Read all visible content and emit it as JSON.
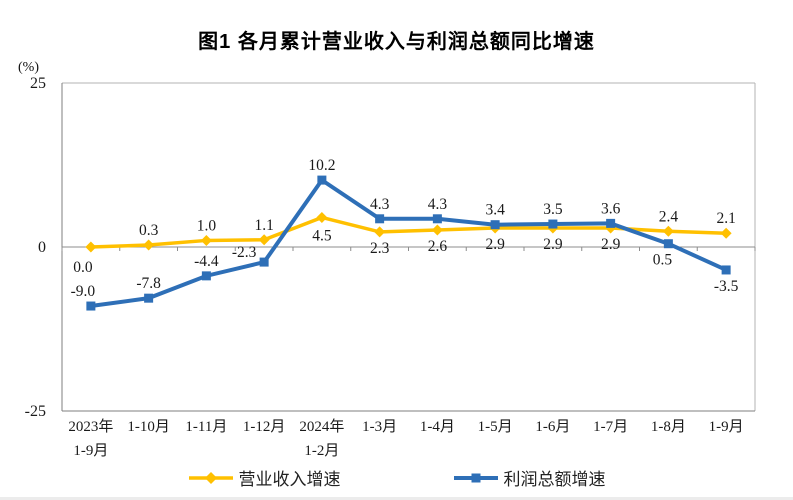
{
  "title": "图1 各月累计营业收入与利润总额同比增速",
  "y_axis_unit": "(%)",
  "chart_data": {
    "type": "line",
    "title": "图1 各月累计营业收入与利润总额同比增速",
    "ylabel_unit": "(%)",
    "ylim": [
      -25,
      25
    ],
    "yticks": [
      25,
      0,
      -25
    ],
    "grid": false,
    "legend_position": "bottom",
    "categories": [
      [
        "2023年",
        "1-9月"
      ],
      [
        "1-10月"
      ],
      [
        "1-11月"
      ],
      [
        "1-12月"
      ],
      [
        "2024年",
        "1-2月"
      ],
      [
        "1-3月"
      ],
      [
        "1-4月"
      ],
      [
        "1-5月"
      ],
      [
        "1-6月"
      ],
      [
        "1-7月"
      ],
      [
        "1-8月"
      ],
      [
        "1-9月"
      ]
    ],
    "series": [
      {
        "id": "revenue-growth",
        "name": "营业收入增速",
        "color": "#FFC000",
        "marker": "diamond",
        "line_width": 3.5,
        "values": [
          0.0,
          0.3,
          1.0,
          1.1,
          4.5,
          2.3,
          2.6,
          2.9,
          2.9,
          2.9,
          2.4,
          2.1
        ],
        "label_pos": [
          "below",
          "above",
          "above",
          "above",
          "below",
          "below",
          "below",
          "below",
          "below",
          "below",
          "above",
          "above"
        ],
        "label_offsets": {
          "0": [
            -8,
            4
          ],
          "4": [
            0,
            2
          ]
        }
      },
      {
        "id": "profit-growth",
        "name": "利润总额增速",
        "color": "#2E6FB7",
        "marker": "square",
        "line_width": 4,
        "values": [
          -9.0,
          -7.8,
          -4.4,
          -2.3,
          10.2,
          4.3,
          4.3,
          3.4,
          3.5,
          3.6,
          0.5,
          -3.5
        ],
        "label_pos": [
          "above",
          "above",
          "above",
          "above",
          "above",
          "above",
          "above",
          "above",
          "above",
          "above",
          "below",
          "below"
        ],
        "label_offsets": {
          "0": [
            -8,
            0
          ],
          "3": [
            -20,
            5
          ],
          "10": [
            -6,
            0
          ]
        }
      }
    ]
  }
}
